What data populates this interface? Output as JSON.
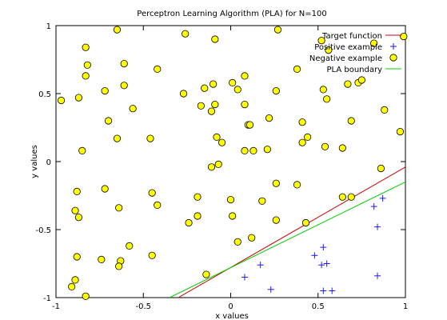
{
  "chart_data": {
    "type": "scatter",
    "title": "Perceptron Learning Algorithm (PLA) for N=100",
    "xlabel": "x values",
    "ylabel": "y values",
    "xlim": [
      -1,
      1
    ],
    "ylim": [
      -1,
      1
    ],
    "x_ticks": [
      -1,
      -0.5,
      0,
      0.5,
      1
    ],
    "y_ticks": [
      -1,
      -0.5,
      0,
      0.5,
      1
    ],
    "x_tick_labels": [
      "-1",
      "-0.5",
      "0",
      "0.5",
      "1"
    ],
    "y_tick_labels": [
      "-1",
      "-0.5",
      "0",
      "0.5",
      "1"
    ],
    "grid": false,
    "legend_position": "top-right",
    "lines": [
      {
        "name": "Target function",
        "color": "#cc0000",
        "points": [
          [
            -0.3,
            -1.0
          ],
          [
            1.0,
            -0.04
          ]
        ]
      },
      {
        "name": "PLA boundary",
        "color": "#00cc00",
        "points": [
          [
            -0.35,
            -1.0
          ],
          [
            1.0,
            -0.15
          ]
        ]
      }
    ],
    "positive": {
      "name": "Positive example",
      "color": "#1a1aff",
      "marker": "plus",
      "points": [
        [
          0.08,
          -0.85
        ],
        [
          0.17,
          -0.76
        ],
        [
          0.23,
          -0.94
        ],
        [
          0.48,
          -0.69
        ],
        [
          0.52,
          -0.76
        ],
        [
          0.53,
          -0.63
        ],
        [
          0.53,
          -0.95
        ],
        [
          0.55,
          -0.75
        ],
        [
          0.58,
          -0.95
        ],
        [
          0.82,
          -0.33
        ],
        [
          0.84,
          -0.48
        ],
        [
          0.84,
          -0.84
        ],
        [
          0.87,
          -0.27
        ]
      ]
    },
    "negative": {
      "name": "Negative example",
      "color": "#ffff00",
      "marker": "circle",
      "points": [
        [
          -0.97,
          0.45
        ],
        [
          -0.87,
          0.47
        ],
        [
          -0.83,
          0.84
        ],
        [
          -0.82,
          0.71
        ],
        [
          -0.83,
          0.63
        ],
        [
          -0.72,
          0.52
        ],
        [
          -0.65,
          0.97
        ],
        [
          -0.61,
          0.72
        ],
        [
          -0.61,
          0.56
        ],
        [
          -0.56,
          0.39
        ],
        [
          -0.42,
          0.68
        ],
        [
          -0.7,
          0.3
        ],
        [
          -0.65,
          0.17
        ],
        [
          -0.46,
          0.17
        ],
        [
          -0.85,
          0.08
        ],
        [
          -0.88,
          -0.22
        ],
        [
          -0.89,
          -0.36
        ],
        [
          -0.87,
          -0.41
        ],
        [
          -0.72,
          -0.2
        ],
        [
          -0.64,
          -0.34
        ],
        [
          -0.45,
          -0.23
        ],
        [
          -0.42,
          -0.32
        ],
        [
          -0.58,
          -0.62
        ],
        [
          -0.45,
          -0.69
        ],
        [
          -0.63,
          -0.73
        ],
        [
          -0.64,
          -0.77
        ],
        [
          -0.74,
          -0.72
        ],
        [
          -0.88,
          -0.7
        ],
        [
          -0.89,
          -0.87
        ],
        [
          -0.91,
          -0.92
        ],
        [
          -0.83,
          -0.99
        ],
        [
          -0.26,
          0.94
        ],
        [
          -0.09,
          0.9
        ],
        [
          -0.27,
          0.5
        ],
        [
          -0.15,
          0.54
        ],
        [
          -0.1,
          0.57
        ],
        [
          -0.17,
          0.41
        ],
        [
          -0.11,
          0.37
        ],
        [
          -0.09,
          0.42
        ],
        [
          -0.08,
          0.18
        ],
        [
          -0.05,
          0.14
        ],
        [
          -0.11,
          -0.04
        ],
        [
          -0.07,
          -0.02
        ],
        [
          -0.19,
          -0.26
        ],
        [
          -0.19,
          -0.4
        ],
        [
          -0.24,
          -0.45
        ],
        [
          -0.14,
          -0.83
        ],
        [
          0.01,
          0.58
        ],
        [
          0.04,
          0.53
        ],
        [
          0.08,
          0.63
        ],
        [
          0.08,
          0.42
        ],
        [
          0.1,
          0.27
        ],
        [
          0.11,
          0.27
        ],
        [
          0.08,
          0.08
        ],
        [
          0.13,
          0.08
        ],
        [
          0.21,
          0.09
        ],
        [
          0.22,
          0.32
        ],
        [
          0.26,
          0.52
        ],
        [
          0.27,
          0.97
        ],
        [
          0.26,
          -0.16
        ],
        [
          0.18,
          -0.29
        ],
        [
          0.0,
          -0.28
        ],
        [
          0.01,
          -0.4
        ],
        [
          0.04,
          -0.59
        ],
        [
          0.12,
          -0.56
        ],
        [
          0.26,
          -0.43
        ],
        [
          0.38,
          0.68
        ],
        [
          0.41,
          0.29
        ],
        [
          0.41,
          0.14
        ],
        [
          0.44,
          0.18
        ],
        [
          0.38,
          -0.17
        ],
        [
          0.43,
          -0.45
        ],
        [
          0.52,
          0.89
        ],
        [
          0.56,
          0.82
        ],
        [
          0.55,
          0.46
        ],
        [
          0.53,
          0.53
        ],
        [
          0.54,
          0.11
        ],
        [
          0.64,
          0.1
        ],
        [
          0.67,
          0.57
        ],
        [
          0.69,
          0.3
        ],
        [
          0.73,
          0.58
        ],
        [
          0.75,
          0.6
        ],
        [
          0.82,
          0.87
        ],
        [
          0.88,
          0.38
        ],
        [
          0.99,
          0.92
        ],
        [
          0.97,
          0.22
        ],
        [
          0.86,
          -0.05
        ],
        [
          0.64,
          -0.26
        ],
        [
          0.69,
          -0.26
        ]
      ]
    }
  }
}
